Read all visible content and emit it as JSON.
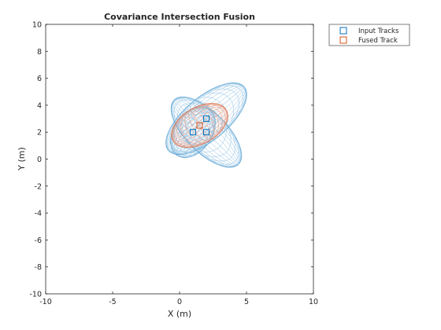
{
  "chart_data": {
    "type": "scatter",
    "title": "Covariance Intersection Fusion",
    "xlabel": "X (m)",
    "ylabel": "Y (m)",
    "xlim": [
      -10,
      10
    ],
    "ylim": [
      -10,
      10
    ],
    "xticks": [
      -10,
      -5,
      0,
      5,
      10
    ],
    "yticks": [
      -10,
      -8,
      -6,
      -4,
      -2,
      0,
      2,
      4,
      6,
      8,
      10
    ],
    "grid": false,
    "legend_position": "outside-top-right",
    "series": [
      {
        "name": "Input Tracks",
        "marker": "square",
        "color": "#0072BD",
        "points": [
          [
            1,
            2
          ],
          [
            2,
            3
          ],
          [
            2,
            2
          ]
        ],
        "ellipses": [
          {
            "center": [
              1,
              2
            ],
            "rx": 2.1,
            "ry": 1.4,
            "angle": 55
          },
          {
            "center": [
              2,
              3
            ],
            "rx": 3.7,
            "ry": 1.6,
            "angle": 40
          },
          {
            "center": [
              2,
              2
            ],
            "rx": 3.4,
            "ry": 1.5,
            "angle": -45
          }
        ]
      },
      {
        "name": "Fused Track",
        "marker": "square",
        "color": "#D95319",
        "points": [
          [
            1.5,
            2.5
          ]
        ],
        "ellipses": [
          {
            "center": [
              1.5,
              2.5
            ],
            "rx": 2.3,
            "ry": 1.35,
            "angle": 30
          }
        ]
      }
    ]
  }
}
